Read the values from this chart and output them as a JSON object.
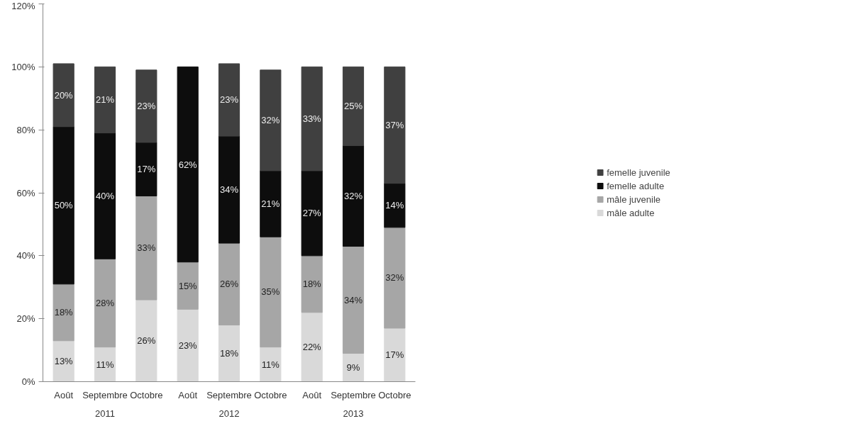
{
  "chart_data": {
    "type": "bar",
    "stacked": true,
    "categories": [
      "Août",
      "Septembre",
      "Octobre",
      "Août",
      "Septembre",
      "Octobre",
      "Août",
      "Septembre",
      "Octobre"
    ],
    "series": [
      {
        "name": "mâle adulte",
        "color": "#d9d9d9",
        "values": [
          13,
          11,
          26,
          23,
          18,
          11,
          22,
          9,
          17
        ],
        "value_labels": [
          "13%",
          "11%",
          "26%",
          "23%",
          "18%",
          "11%",
          "22%",
          "9%",
          "17%"
        ]
      },
      {
        "name": "mâle juvenile",
        "color": "#a6a6a6",
        "values": [
          18,
          28,
          33,
          15,
          26,
          35,
          18,
          34,
          32
        ],
        "value_labels": [
          "18%",
          "28%",
          "33%",
          "15%",
          "26%",
          "35%",
          "18%",
          "34%",
          "32%"
        ]
      },
      {
        "name": "femelle adulte",
        "color": "#0d0d0d",
        "values": [
          50,
          40,
          17,
          62,
          34,
          21,
          27,
          32,
          14
        ],
        "value_labels": [
          "50%",
          "40%",
          "17%",
          "62%",
          "34%",
          "21%",
          "27%",
          "32%",
          "14%"
        ]
      },
      {
        "name": "femelle juvenile",
        "color": "#404040",
        "values": [
          20,
          21,
          23,
          null,
          23,
          32,
          33,
          25,
          37
        ],
        "value_labels": [
          "20%",
          "21%",
          "23%",
          null,
          "23%",
          "32%",
          "33%",
          "25%",
          "37%"
        ]
      }
    ],
    "ylim": [
      0,
      120
    ],
    "yticks": [
      {
        "value": 0,
        "label": "0%"
      },
      {
        "value": 20,
        "label": "20%"
      },
      {
        "value": 40,
        "label": "40%"
      },
      {
        "value": 60,
        "label": "60%"
      },
      {
        "value": 80,
        "label": "80%"
      },
      {
        "value": 100,
        "label": "100%"
      },
      {
        "value": 120,
        "label": "120%"
      }
    ],
    "annotations": [
      "2011",
      "2012",
      "2013"
    ],
    "grid": false,
    "legend": "right"
  }
}
